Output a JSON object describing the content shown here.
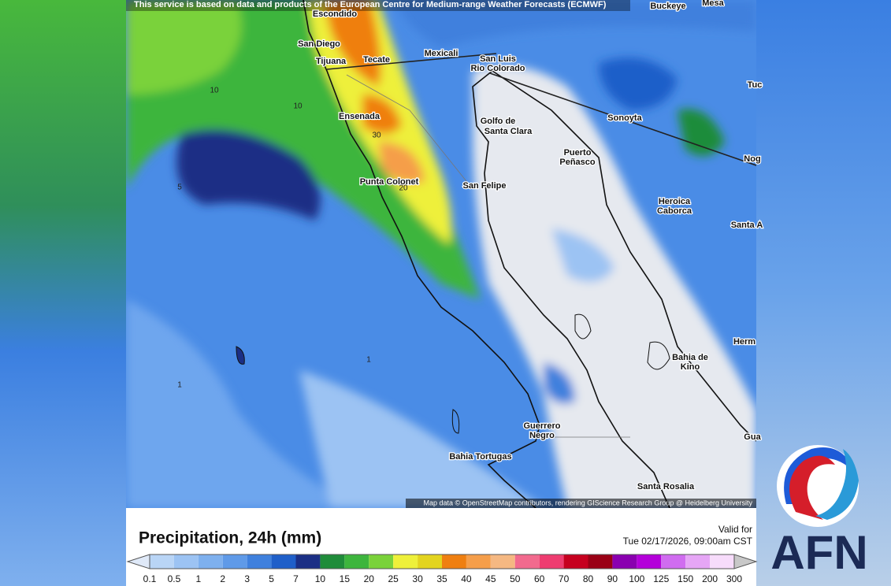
{
  "header": {
    "attribution": "This service is based on data and products of the European Centre for Medium-range Weather Forecasts (ECMWF)"
  },
  "map": {
    "places": [
      "Escondido",
      "San Diego",
      "Tijuana",
      "Tecate",
      "Mexicali",
      "San Luis",
      "Rio Colorado",
      "Ensenada",
      "Golfo de",
      "Santa Clara",
      "Puerto",
      "Peñasco",
      "Sonoyta",
      "San Felipe",
      "Punta Colonet",
      "Heroica",
      "Caborca",
      "Bahia de",
      "Kino",
      "Guerrero",
      "Negro",
      "Bahia Tortugas",
      "Santa Rosalia",
      "Buckeye",
      "Mesa",
      "Nog",
      "Tuc",
      "Santa A",
      "Herm",
      "Gua"
    ],
    "contour_labels": [
      "10",
      "10",
      "30",
      "20",
      "5",
      "1",
      "1"
    ],
    "credit": "Map data © OpenStreetMap contributors, rendering GIScience Research Group @ Heidelberg University"
  },
  "legend": {
    "title": "Precipitation, 24h (mm)",
    "valid_label": "Valid for",
    "valid_time": "Tue 02/17/2026, 09:00am CST",
    "ticks": [
      0.1,
      0.5,
      1,
      2,
      3,
      5,
      7,
      10,
      15,
      20,
      25,
      30,
      35,
      40,
      45,
      50,
      60,
      70,
      80,
      90,
      100,
      125,
      150,
      200,
      300
    ],
    "colors": [
      "#b9d5f6",
      "#9cc3f3",
      "#7eb0ee",
      "#5f9ae8",
      "#3f80dd",
      "#1f5fc9",
      "#1b2f85",
      "#1f8c3a",
      "#3db53d",
      "#7ad23a",
      "#eef03a",
      "#e3d41f",
      "#ef7f10",
      "#f59e4a",
      "#f5b882",
      "#f26a8e",
      "#ee3c70",
      "#c6001f",
      "#9a0015",
      "#8a00b0",
      "#b400da",
      "#d06cf0",
      "#e6a6f6",
      "#f7dcfb"
    ],
    "under_color": "#dfe9f8",
    "over_color": "#c8c8c8"
  },
  "logo": {
    "text": "AFN"
  }
}
